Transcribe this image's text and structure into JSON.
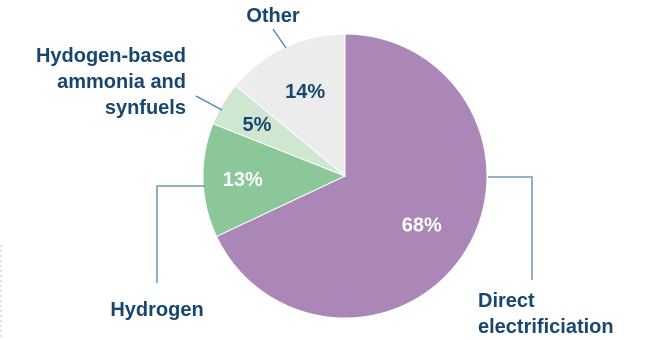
{
  "chart_data": {
    "type": "pie",
    "title": "",
    "slices": [
      {
        "label": "Direct electrificiation",
        "value": 68,
        "display": "68%",
        "color": "#ab87b8",
        "pct_color": "#ffffff"
      },
      {
        "label": "Hydrogen",
        "value": 13,
        "display": "13%",
        "color": "#8cc79a",
        "pct_color": "#ffffff"
      },
      {
        "label": "Hydogen-based ammonia and synfuels",
        "value": 5,
        "display": "5%",
        "color": "#cfe6d0",
        "pct_color": "#17476f"
      },
      {
        "label": "Other",
        "value": 14,
        "display": "14%",
        "color": "#ececec",
        "pct_color": "#17476f"
      }
    ]
  },
  "labels": {
    "other": "Other",
    "synfuels_line1": "Hydogen-based",
    "synfuels_line2": "ammonia and",
    "synfuels_line3": "synfuels",
    "hydrogen": "Hydrogen",
    "direct_line1": "Direct",
    "direct_line2": "electrificiation"
  }
}
